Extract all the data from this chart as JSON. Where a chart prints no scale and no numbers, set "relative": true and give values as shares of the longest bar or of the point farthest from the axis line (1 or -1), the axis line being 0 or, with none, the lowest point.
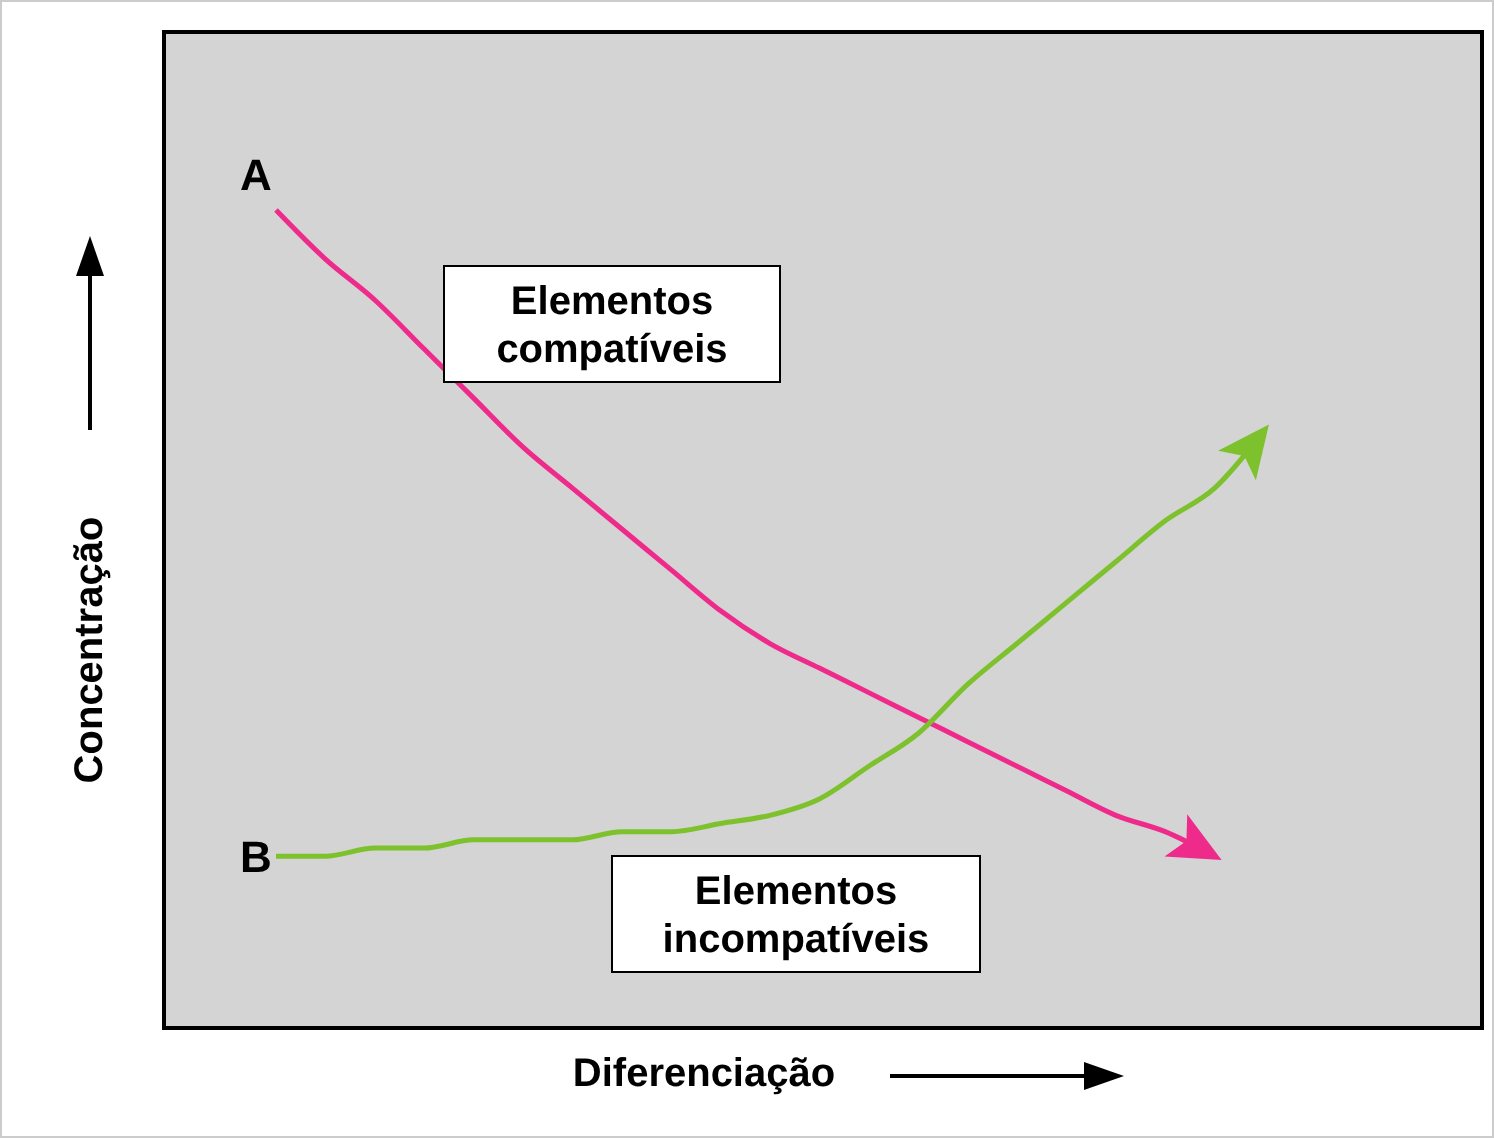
{
  "chart_data": {
    "type": "line",
    "relative": true,
    "xlabel": "Diferenciação",
    "ylabel": "Concentração",
    "categories": [
      null,
      null,
      null,
      null,
      null,
      null,
      null,
      null,
      null,
      null,
      null,
      null,
      null,
      null,
      null,
      null,
      null,
      null,
      null,
      null,
      null
    ],
    "series": [
      {
        "name": "A",
        "color": "#ee2b8b",
        "values": [
          1.0,
          0.94,
          0.89,
          0.83,
          0.77,
          0.71,
          0.66,
          0.61,
          0.56,
          0.51,
          0.47,
          0.44,
          0.41,
          0.38,
          0.35,
          0.32,
          0.29,
          0.26,
          0.24,
          0.21,
          null
        ]
      },
      {
        "name": "B",
        "color": "#7dc12c",
        "values": [
          0.21,
          0.21,
          0.22,
          0.22,
          0.23,
          0.23,
          0.23,
          0.24,
          0.24,
          0.25,
          0.26,
          0.28,
          0.32,
          0.36,
          0.42,
          0.47,
          0.52,
          0.57,
          0.62,
          0.66,
          0.73
        ]
      }
    ],
    "annotations": [
      "Elementos compatíveis",
      "Elementos incompatíveis"
    ]
  }
}
